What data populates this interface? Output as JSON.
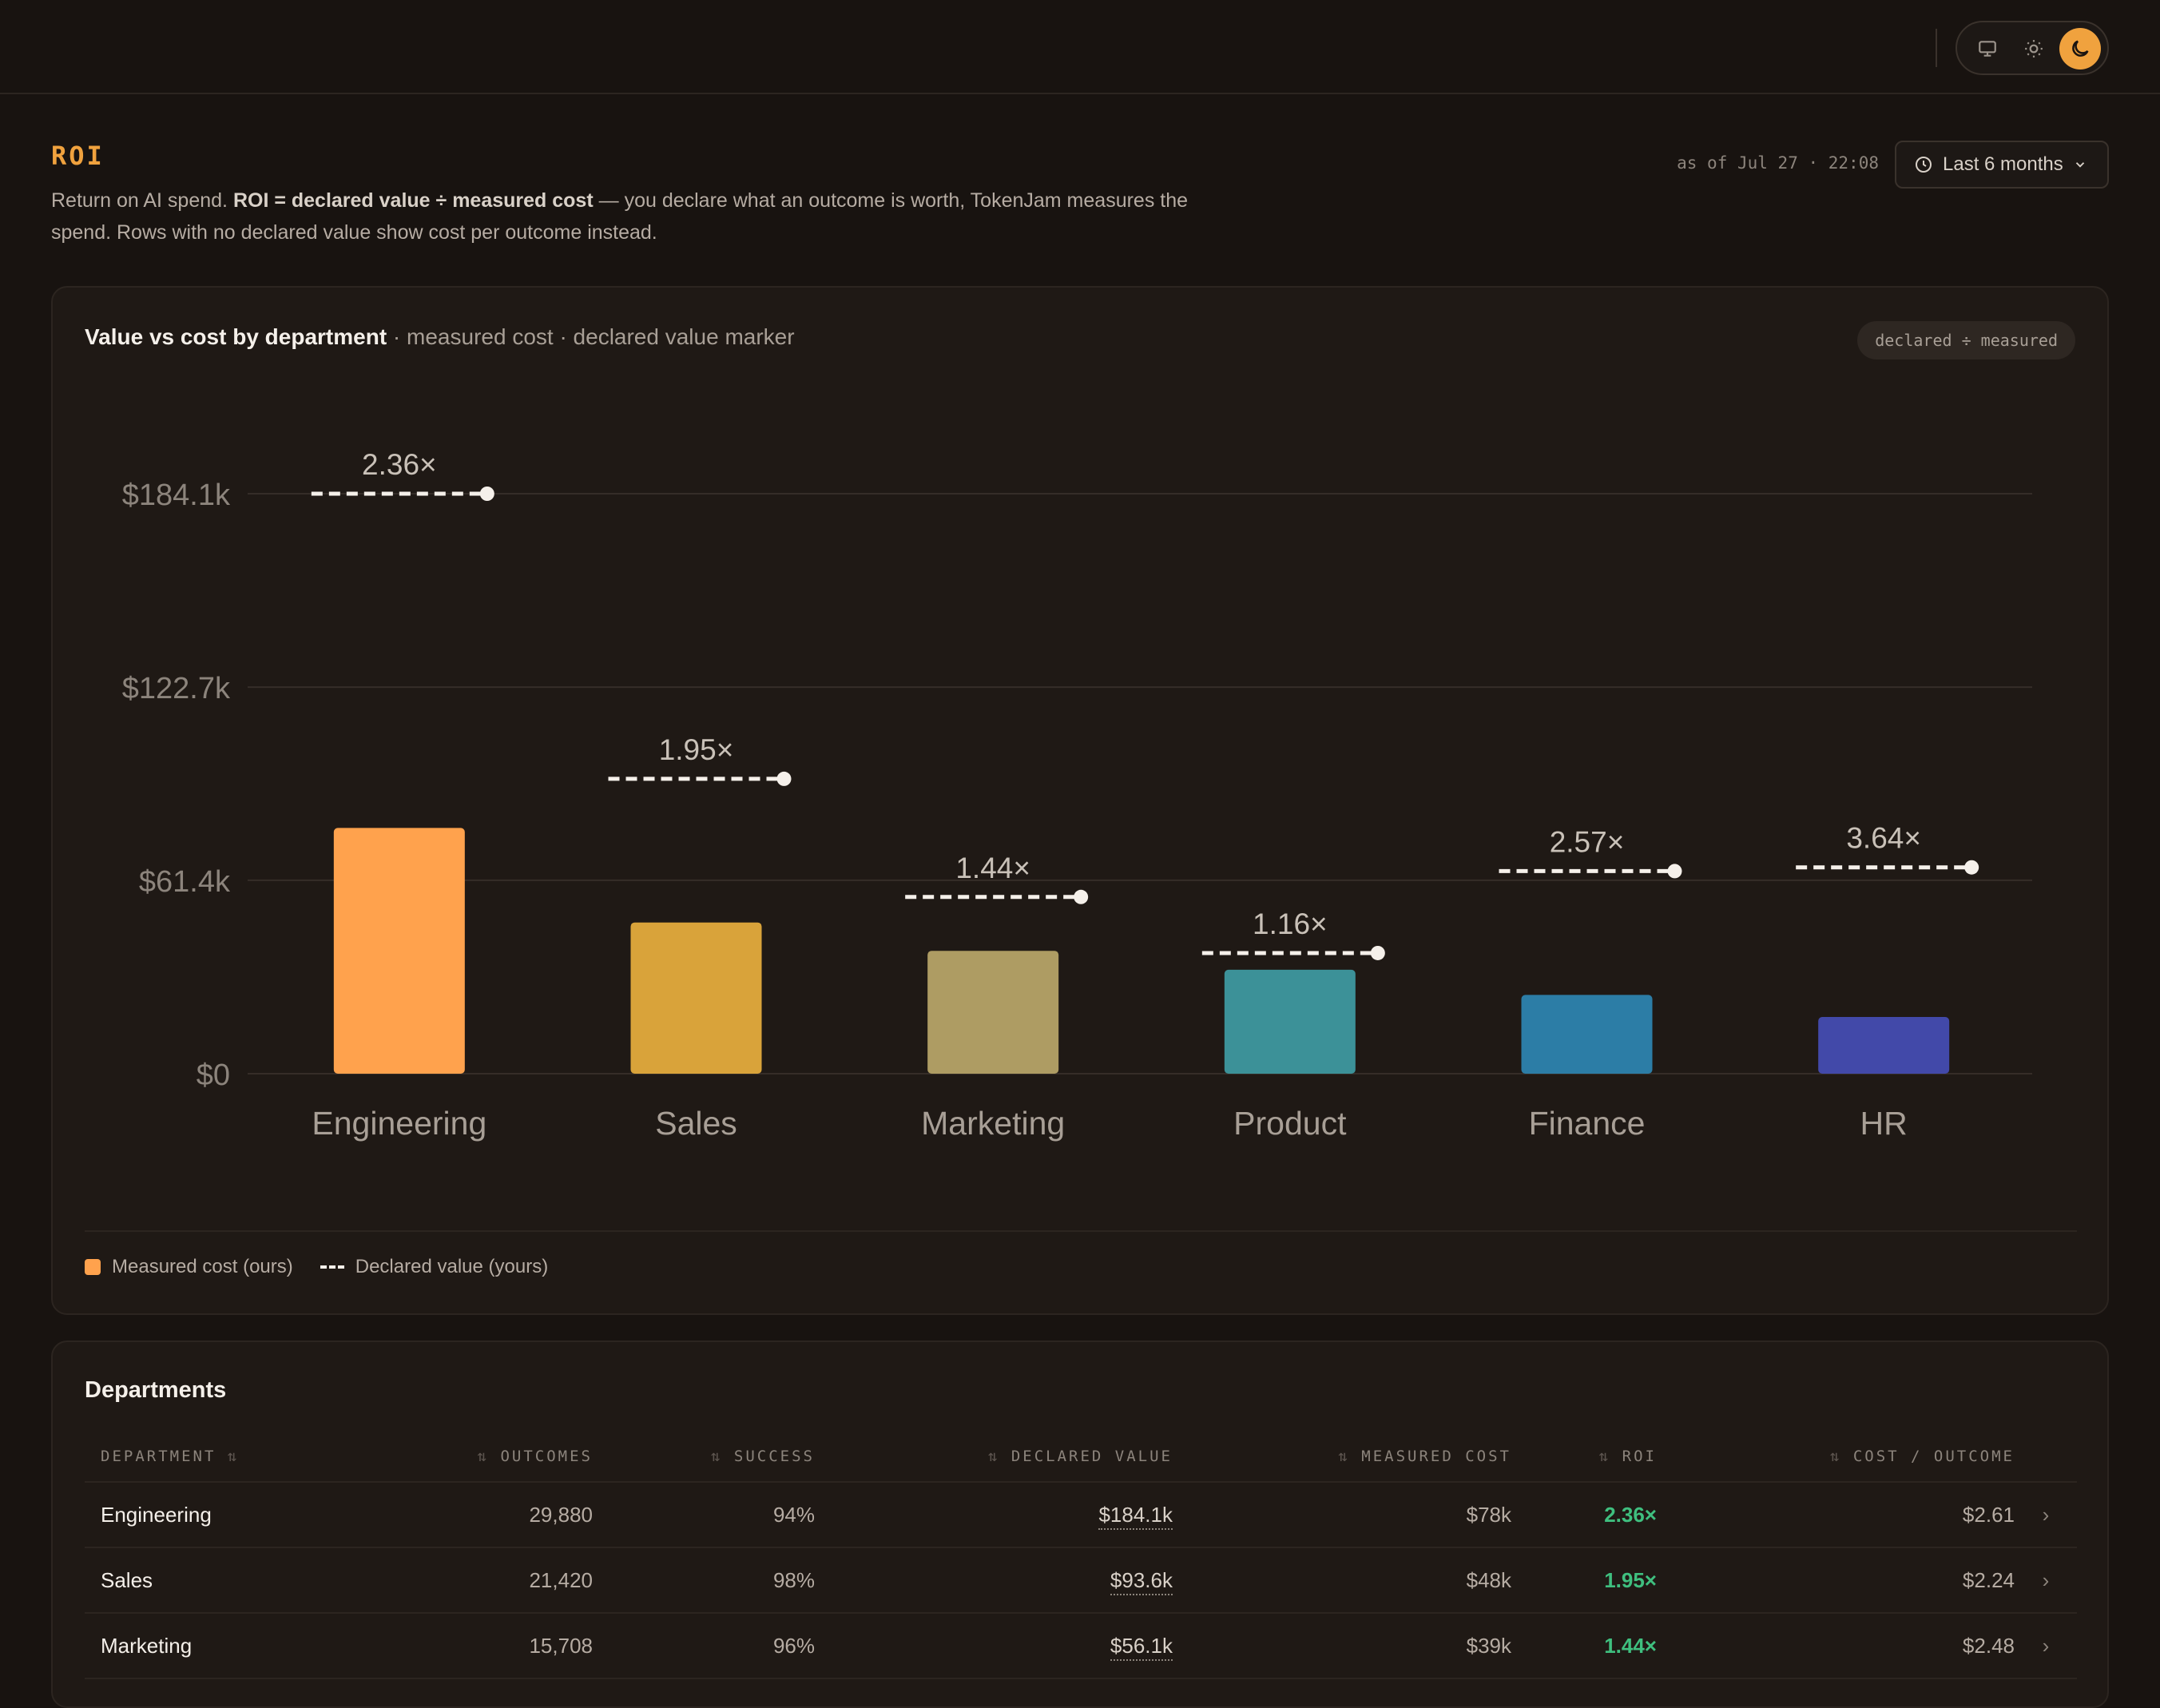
{
  "header": {
    "title": "ROI",
    "description_lead": "Return on AI spend. ",
    "description_formula": "ROI = declared value ÷ measured cost",
    "description_tail": " — you declare what an outcome is worth, TokenJam measures the spend. Rows with no declared value show cost per outcome instead.",
    "as_of": "as of Jul 27 · 22:08",
    "range_label": "Last 6 months"
  },
  "theme": {
    "options": [
      {
        "name": "system",
        "icon": "monitor-icon",
        "active": false
      },
      {
        "name": "light",
        "icon": "sun-icon",
        "active": false
      },
      {
        "name": "dark",
        "icon": "moon-icon",
        "active": true
      }
    ],
    "accent": "#f0a23e"
  },
  "chart_card": {
    "title": "Value vs cost by department",
    "subtitle": " · measured cost · declared value marker",
    "formula_pill": "declared ÷ measured",
    "legend": {
      "cost_label": "Measured cost (ours)",
      "value_label": "Declared value (yours)"
    }
  },
  "chart_data": {
    "type": "bar",
    "categories": [
      "Engineering",
      "Sales",
      "Marketing",
      "Product",
      "Finance",
      "HR"
    ],
    "series": [
      {
        "name": "Measured cost (ours)",
        "values": [
          78000,
          48000,
          39000,
          33000,
          25000,
          18000
        ],
        "colors": [
          "#ffa24d",
          "#d9a33a",
          "#ae9c63",
          "#3c9198",
          "#2c7da6",
          "#4249a9"
        ]
      },
      {
        "name": "Declared value (yours)",
        "values": [
          184100,
          93600,
          56100,
          38300,
          64300,
          65500
        ]
      }
    ],
    "roi_labels": [
      "2.36×",
      "1.95×",
      "1.44×",
      "1.16×",
      "2.57×",
      "3.64×"
    ],
    "y_ticks": [
      0,
      61400,
      122700,
      184100
    ],
    "y_tick_labels": [
      "$0",
      "$61.4k",
      "$122.7k",
      "$184.1k"
    ],
    "ylim": [
      0,
      184100
    ],
    "grid": true,
    "legend_position": "bottom-left"
  },
  "departments": {
    "title": "Departments",
    "columns": [
      "DEPARTMENT",
      "OUTCOMES",
      "SUCCESS",
      "DECLARED VALUE",
      "MEASURED COST",
      "ROI",
      "COST / OUTCOME"
    ],
    "sort_glyph": "⇅",
    "rows": [
      {
        "name": "Engineering",
        "outcomes": "29,880",
        "success": "94%",
        "declared": "$184.1k",
        "cost": "$78k",
        "roi": "2.36×",
        "cpo": "$2.61",
        "chevron": "›"
      },
      {
        "name": "Sales",
        "outcomes": "21,420",
        "success": "98%",
        "declared": "$93.6k",
        "cost": "$48k",
        "roi": "1.95×",
        "cpo": "$2.24",
        "chevron": "›"
      },
      {
        "name": "Marketing",
        "outcomes": "15,708",
        "success": "96%",
        "declared": "$56.1k",
        "cost": "$39k",
        "roi": "1.44×",
        "cpo": "$2.48",
        "chevron": "›"
      }
    ]
  }
}
